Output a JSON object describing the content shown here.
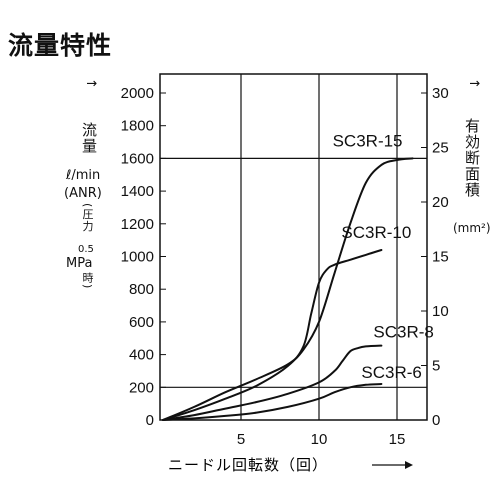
{
  "page": {
    "title": "流量特性"
  },
  "left_axis": {
    "label_main": "流量",
    "label_unit": "ℓ/min",
    "label_anr": "(ANR)",
    "label_cond_open": "(圧力",
    "label_cond_value": "0.5",
    "label_cond_unit": "MPa",
    "label_cond_close": "時)"
  },
  "right_axis": {
    "label_main": "有効断面積",
    "label_unit": "(mm²)"
  },
  "x_axis": {
    "label": "ニードル回転数（回）"
  },
  "chart_data": {
    "type": "line",
    "title": "流量特性",
    "xlabel": "ニードル回転数（回）",
    "ylabel": "流量 ℓ/min (ANR) (圧力 0.5 MPa 時)",
    "y2label": "有効断面積 (mm²)",
    "xlim": [
      0,
      17
    ],
    "ylim": [
      0,
      2100
    ],
    "y2lim": [
      0,
      31.5
    ],
    "x_ticks": [
      5,
      10,
      15
    ],
    "y_ticks": [
      0,
      200,
      400,
      600,
      800,
      1000,
      1200,
      1400,
      1600,
      1800,
      2000
    ],
    "y2_ticks": [
      0,
      5,
      10,
      15,
      20,
      25,
      30
    ],
    "x_gridlines": [
      5,
      10,
      15
    ],
    "y_gridlines": [
      200,
      1600
    ],
    "grid": true,
    "legend": "none (curves labeled directly)",
    "series": [
      {
        "name": "SC3R-15",
        "x": [
          0,
          2,
          4,
          6,
          8,
          9,
          10,
          11,
          12,
          13,
          14,
          15,
          16
        ],
        "y": [
          0,
          80,
          170,
          250,
          340,
          430,
          600,
          900,
          1200,
          1450,
          1560,
          1590,
          1600
        ]
      },
      {
        "name": "SC3R-10",
        "x": [
          0,
          2,
          4,
          6,
          8,
          9,
          9.5,
          10,
          10.5,
          11,
          12,
          13,
          14
        ],
        "y": [
          0,
          60,
          130,
          210,
          330,
          450,
          650,
          840,
          920,
          950,
          980,
          1010,
          1040
        ]
      },
      {
        "name": "SC3R-8",
        "x": [
          0,
          2,
          4,
          6,
          8,
          10,
          11,
          11.5,
          12,
          12.5,
          13,
          14
        ],
        "y": [
          0,
          30,
          70,
          110,
          160,
          230,
          300,
          360,
          420,
          440,
          450,
          455
        ]
      },
      {
        "name": "SC3R-6",
        "x": [
          0,
          2,
          4,
          6,
          8,
          10,
          11,
          12,
          13,
          14
        ],
        "y": [
          0,
          10,
          25,
          45,
          80,
          130,
          170,
          200,
          215,
          220
        ]
      }
    ]
  }
}
